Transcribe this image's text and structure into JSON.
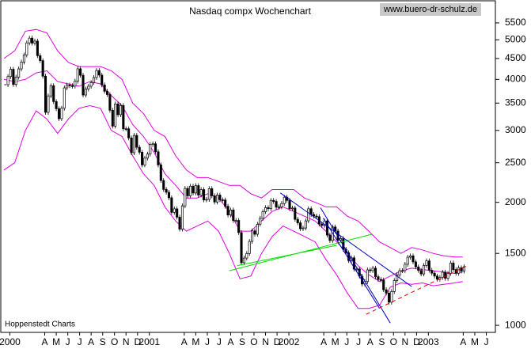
{
  "chart_data": {
    "type": "candlestick",
    "title": "Nasdaq compx Wochenchart",
    "source": "www.buero-dr-schulz.de",
    "note": "Hoppenstedt Charts",
    "log_scale": true,
    "ylim": [
      961,
      6230
    ],
    "yticks": [
      1000,
      1500,
      2000,
      2500,
      3000,
      3500,
      4000,
      4500,
      5000,
      5500
    ],
    "xlim": [
      0,
      182
    ],
    "xticks": [
      {
        "value": 2.2,
        "label": "2000"
      },
      {
        "value": 15.2,
        "label": "A"
      },
      {
        "value": 19.5,
        "label": "M"
      },
      {
        "value": 23.8,
        "label": "J"
      },
      {
        "value": 28.2,
        "label": "J"
      },
      {
        "value": 32.5,
        "label": "A"
      },
      {
        "value": 36.8,
        "label": "S"
      },
      {
        "value": 41.2,
        "label": "O"
      },
      {
        "value": 45.5,
        "label": "N"
      },
      {
        "value": 49.8,
        "label": "D"
      },
      {
        "value": 54.2,
        "label": "2001"
      },
      {
        "value": 67.2,
        "label": "A"
      },
      {
        "value": 71.5,
        "label": "M"
      },
      {
        "value": 75.8,
        "label": "J"
      },
      {
        "value": 80.2,
        "label": "J"
      },
      {
        "value": 84.5,
        "label": "A"
      },
      {
        "value": 88.8,
        "label": "S"
      },
      {
        "value": 93.2,
        "label": "O"
      },
      {
        "value": 97.5,
        "label": "N"
      },
      {
        "value": 101.8,
        "label": "D"
      },
      {
        "value": 106.2,
        "label": "2002"
      },
      {
        "value": 119.2,
        "label": "A"
      },
      {
        "value": 123.5,
        "label": "M"
      },
      {
        "value": 127.8,
        "label": "J"
      },
      {
        "value": 132.2,
        "label": "J"
      },
      {
        "value": 136.5,
        "label": "A"
      },
      {
        "value": 140.8,
        "label": "S"
      },
      {
        "value": 145.2,
        "label": "O"
      },
      {
        "value": 149.5,
        "label": "N"
      },
      {
        "value": 153.8,
        "label": "D"
      },
      {
        "value": 158.2,
        "label": "2003"
      },
      {
        "value": 171.2,
        "label": "A"
      },
      {
        "value": 175.5,
        "label": "M"
      },
      {
        "value": 179.8,
        "label": "J"
      }
    ],
    "closes": [
      3882,
      4064,
      4235,
      3887,
      4051,
      4244,
      4411,
      4590,
      4914,
      5048,
      4908,
      4964,
      4573,
      4446,
      4073,
      3322,
      3644,
      3860,
      3530,
      3390,
      3205,
      3400,
      3813,
      3874,
      3860,
      3850,
      3960,
      4246,
      4094,
      3663,
      3787,
      3849,
      3930,
      4042,
      4206,
      4098,
      3878,
      3740,
      3672,
      3361,
      3074,
      3483,
      3278,
      3451,
      3028,
      3027,
      2876,
      2645,
      2917,
      2728,
      2653,
      2470,
      2566,
      2626,
      2770,
      2782,
      2660,
      2470,
      2262,
      2152,
      2117,
      2052,
      1890,
      1928,
      1840,
      1720,
      1961,
      2163,
      2075,
      2191,
      2108,
      2198,
      2084,
      2149,
      2028,
      2034,
      2161,
      2075,
      2004,
      2084,
      2029,
      2027,
      1956,
      1863,
      1916,
      1805,
      1806,
      1687,
      1423,
      1461,
      1499,
      1605,
      1703,
      1671,
      1768,
      1828,
      1898,
      1941,
      1930,
      2022,
      2010,
      1946,
      1950,
      1987,
      2059,
      2022,
      1930,
      1937,
      1818,
      1782,
      1724,
      1731,
      1802,
      1929,
      1868,
      1851,
      1845,
      1770,
      1756,
      1801,
      1663,
      1613,
      1741,
      1701,
      1615,
      1631,
      1535,
      1505,
      1440,
      1463,
      1373,
      1374,
      1319,
      1262,
      1280,
      1367,
      1361,
      1380,
      1315,
      1295,
      1291,
      1222,
      1199,
      1139,
      1210,
      1287,
      1329,
      1360,
      1361,
      1411,
      1468,
      1479,
      1430,
      1390,
      1363,
      1336,
      1401,
      1438,
      1364,
      1342,
      1320,
      1297,
      1310,
      1349,
      1303,
      1340,
      1421,
      1369,
      1341,
      1383,
      1358,
      1391
    ],
    "bands": [
      {
        "color": "#e000e0",
        "x": [
          0,
          4,
          8,
          12,
          16,
          20,
          24,
          28,
          32,
          36,
          40,
          44,
          48,
          52,
          56,
          60,
          64,
          68,
          72,
          76,
          80,
          84,
          88,
          92,
          96,
          100,
          104,
          108,
          112,
          116,
          120,
          124,
          128,
          132,
          136,
          140,
          144,
          148,
          152,
          156,
          160,
          164,
          168,
          171
        ],
        "values": [
          4500,
          4700,
          5250,
          5300,
          5200,
          4700,
          4400,
          4300,
          4300,
          4300,
          4200,
          4000,
          3500,
          3300,
          3000,
          2900,
          2600,
          2400,
          2300,
          2300,
          2250,
          2200,
          2200,
          2100,
          2050,
          2150,
          2150,
          2150,
          2050,
          2000,
          1950,
          1950,
          1850,
          1800,
          1700,
          1600,
          1550,
          1500,
          1550,
          1530,
          1500,
          1480,
          1470,
          1470
        ]
      },
      {
        "color": "#e000e0",
        "x": [
          0,
          4,
          8,
          12,
          16,
          20,
          24,
          28,
          32,
          36,
          40,
          44,
          48,
          52,
          56,
          60,
          64,
          68,
          72,
          76,
          80,
          84,
          88,
          92,
          96,
          100,
          104,
          108,
          112,
          116,
          120,
          124,
          128,
          132,
          136,
          140,
          144,
          148,
          152,
          156,
          160,
          164,
          168,
          171
        ],
        "values": [
          4000,
          3950,
          4000,
          4150,
          4200,
          3950,
          3900,
          3850,
          3950,
          3900,
          3650,
          3450,
          3100,
          2900,
          2650,
          2350,
          2200,
          2050,
          2050,
          2100,
          2050,
          1900,
          1700,
          1700,
          1800,
          1900,
          1950,
          1900,
          1850,
          1800,
          1700,
          1600,
          1500,
          1400,
          1330,
          1280,
          1320,
          1360,
          1380,
          1370,
          1360,
          1350,
          1340,
          1350
        ]
      },
      {
        "color": "#e000e0",
        "x": [
          0,
          4,
          8,
          12,
          16,
          20,
          24,
          28,
          32,
          36,
          40,
          44,
          48,
          52,
          56,
          60,
          64,
          68,
          72,
          76,
          80,
          84,
          88,
          92,
          96,
          100,
          104,
          108,
          112,
          116,
          120,
          124,
          128,
          132,
          136,
          140,
          144,
          148,
          152,
          156,
          160,
          164,
          168,
          171
        ],
        "values": [
          2400,
          2500,
          3000,
          3350,
          3200,
          2950,
          3200,
          3400,
          3450,
          3400,
          3000,
          2900,
          2600,
          2350,
          2200,
          1950,
          1800,
          1700,
          1750,
          1800,
          1700,
          1500,
          1300,
          1320,
          1500,
          1650,
          1750,
          1700,
          1650,
          1600,
          1450,
          1330,
          1200,
          1100,
          1100,
          1120,
          1240,
          1270,
          1260,
          1270,
          1250,
          1260,
          1270,
          1280
        ]
      }
    ],
    "trendlines": [
      {
        "color": "#00e000",
        "dashed": false,
        "x": [
          84,
          137
        ],
        "values": [
          1360,
          1670
        ]
      },
      {
        "color": "#00e000",
        "dashed": false,
        "x": [
          87,
          124
        ],
        "values": [
          1400,
          1570
        ]
      },
      {
        "color": "#0000c0",
        "dashed": false,
        "x": [
          103,
          152
        ],
        "values": [
          2110,
          1244
        ]
      },
      {
        "color": "#0000c0",
        "dashed": false,
        "x": [
          118,
          144
        ],
        "values": [
          1940,
          1013
        ]
      },
      {
        "color": "#0000c0",
        "dashed": false,
        "x": [
          119,
          140
        ],
        "values": [
          1830,
          1100
        ]
      },
      {
        "color": "#e00000",
        "dashed": true,
        "x": [
          135,
          173
        ],
        "values": [
          1064,
          1403
        ]
      }
    ]
  }
}
